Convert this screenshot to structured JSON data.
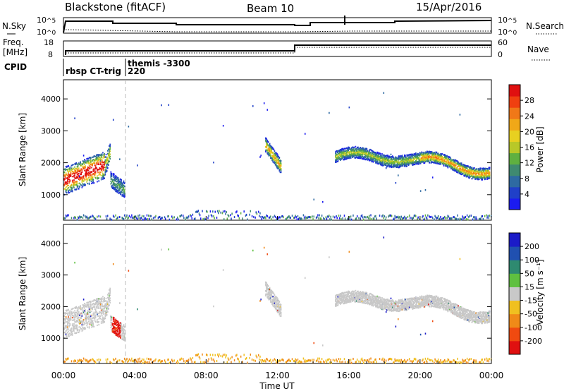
{
  "header": {
    "title": "Blackstone (fitACF)",
    "beam": "Beam 10",
    "date": "15/Apr/2016"
  },
  "top_panel": {
    "left_label": "N.Sky",
    "right_label": "N.Search",
    "left_ticks": [
      "10^5",
      "10^0"
    ],
    "right_ticks": [
      "10^5",
      "10^0"
    ]
  },
  "freq_panel": {
    "left_label_1": "Freq.",
    "left_label_2": "[MHz]",
    "left_ticks": [
      "18",
      "8"
    ],
    "right_label": "Nave",
    "right_ticks": [
      "60",
      "0"
    ]
  },
  "cpid": {
    "label": "CPID",
    "entries": [
      {
        "text": "rbsp CT-trig",
        "row": 2
      },
      {
        "text": "themis -3300",
        "row": 1
      },
      {
        "text": "220",
        "row": 2
      }
    ]
  },
  "chart_data": [
    {
      "type": "heatmap",
      "quantity": "power",
      "ylabel": "Slant Range [km]",
      "xlabel": "",
      "y_ticks": [
        "1000",
        "2000",
        "3000",
        "4000"
      ],
      "ylim": [
        200,
        4600
      ],
      "colorbar_label": "Power [dB]",
      "colorbar_ticks": [
        "4",
        "8",
        "12",
        "16",
        "20",
        "24",
        "28"
      ],
      "colors": [
        "#1b1bf0",
        "#2040c8",
        "#2e6aa2",
        "#3f8a70",
        "#5fb040",
        "#b8c828",
        "#e8d020",
        "#f0a818",
        "#f07818",
        "#f04010",
        "#e01010"
      ]
    },
    {
      "type": "heatmap",
      "quantity": "velocity",
      "ylabel": "Slant Range [km]",
      "xlabel": "Time UT",
      "y_ticks": [
        "1000",
        "2000",
        "3000",
        "4000"
      ],
      "ylim": [
        200,
        4600
      ],
      "x_ticks": [
        "00:00",
        "04:00",
        "08:00",
        "12:00",
        "16:00",
        "20:00",
        "00:00"
      ],
      "xlim_hours": [
        0,
        24
      ],
      "colorbar_label": "Velocity [m s⁻¹]",
      "colorbar_ticks": [
        "-200",
        "-100",
        "-50",
        "-15",
        "15",
        "50",
        "100",
        "200"
      ],
      "colors": [
        "#e01010",
        "#f04a10",
        "#f08a18",
        "#f0c020",
        "#c8c8c8",
        "#5fc040",
        "#2e8a70",
        "#2050b0",
        "#1b1bc8"
      ]
    }
  ]
}
